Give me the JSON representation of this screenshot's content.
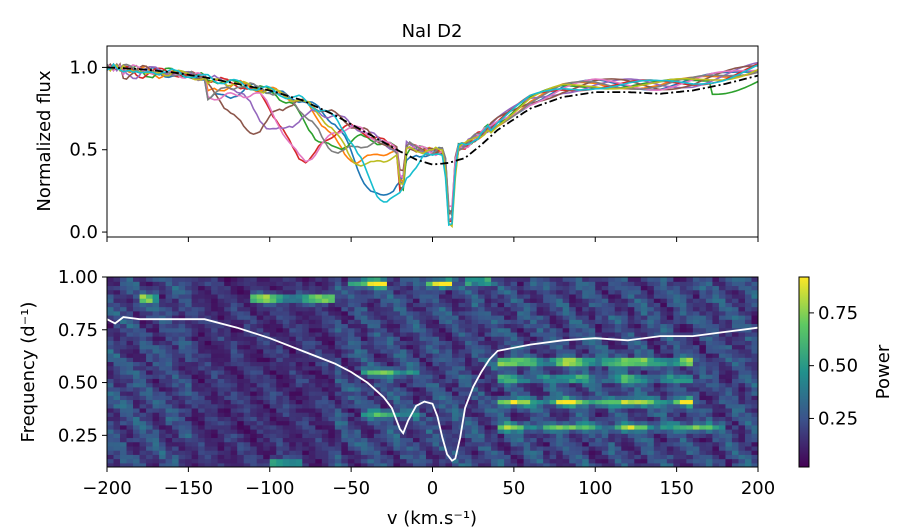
{
  "chart_data": [
    {
      "type": "line",
      "title": "NaI D2",
      "ylabel": "Normalized flux",
      "xlabel": "",
      "xlim": [
        -200,
        200
      ],
      "ylim": [
        -0.03,
        1.13
      ],
      "yticks": [
        0.0,
        0.5,
        1.0
      ],
      "ytick_labels": [
        "0.0",
        "0.5",
        "1.0"
      ],
      "xticks": [
        -200,
        -150,
        -100,
        -50,
        0,
        50,
        100,
        150,
        200
      ],
      "grid": false,
      "legend": "none",
      "series_colors": [
        "#1f77b4",
        "#ff7f0e",
        "#2ca02c",
        "#d62728",
        "#9467bd",
        "#8c564b",
        "#e377c2",
        "#7f7f7f",
        "#bcbd22",
        "#17becf"
      ],
      "template_color": "#000000",
      "template_style": "dash-dot",
      "template": {
        "x": [
          -200,
          -180,
          -160,
          -140,
          -120,
          -100,
          -80,
          -60,
          -40,
          -20,
          -10,
          0,
          10,
          20,
          30,
          40,
          60,
          80,
          100,
          120,
          140,
          160,
          180,
          200
        ],
        "y": [
          1.0,
          0.99,
          0.97,
          0.94,
          0.9,
          0.86,
          0.8,
          0.71,
          0.6,
          0.49,
          0.44,
          0.41,
          0.42,
          0.45,
          0.53,
          0.62,
          0.75,
          0.82,
          0.85,
          0.85,
          0.84,
          0.86,
          0.9,
          0.95
        ]
      }
    },
    {
      "type": "heatmap",
      "xlabel": "v (km.s⁻¹)",
      "ylabel": "Frequency (d⁻¹)",
      "xlim": [
        -200,
        200
      ],
      "ylim": [
        0.1,
        1.0
      ],
      "xticks": [
        -200,
        -150,
        -100,
        -50,
        0,
        50,
        100,
        150,
        200
      ],
      "xtick_labels": [
        "−200",
        "−150",
        "−100",
        "−50",
        "0",
        "50",
        "100",
        "150",
        "200"
      ],
      "yticks": [
        0.25,
        0.5,
        0.75,
        1.0
      ],
      "ytick_labels": [
        "0.25",
        "0.50",
        "0.75",
        "1.00"
      ],
      "colormap": "viridis",
      "colorbar_label": "Power",
      "colorbar_range": [
        0.02,
        0.92
      ],
      "colorbar_ticks": [
        0.25,
        0.5,
        0.75
      ],
      "colorbar_tick_labels": [
        "0.25",
        "0.50",
        "0.75"
      ],
      "overlay_profile_color": "#ffffff",
      "overlay_profile": {
        "x": [
          -200,
          -195,
          -190,
          -180,
          -160,
          -140,
          -120,
          -100,
          -80,
          -60,
          -50,
          -40,
          -30,
          -25,
          -20,
          -18,
          -15,
          -10,
          -5,
          0,
          3,
          6,
          9,
          12,
          14,
          17,
          20,
          25,
          30,
          35,
          40,
          60,
          80,
          100,
          120,
          140,
          160,
          180,
          190,
          200
        ],
        "y": [
          0.8,
          0.78,
          0.81,
          0.8,
          0.8,
          0.8,
          0.76,
          0.71,
          0.65,
          0.59,
          0.55,
          0.5,
          0.43,
          0.38,
          0.28,
          0.26,
          0.32,
          0.39,
          0.41,
          0.4,
          0.34,
          0.24,
          0.16,
          0.13,
          0.14,
          0.24,
          0.38,
          0.48,
          0.55,
          0.61,
          0.65,
          0.68,
          0.7,
          0.71,
          0.7,
          0.72,
          0.72,
          0.74,
          0.75,
          0.76
        ]
      },
      "bright_bands": [
        {
          "x": [
            -110,
            -60
          ],
          "freq": 0.9,
          "level": 0.8
        },
        {
          "x": [
            -50,
            -30
          ],
          "freq": 0.97,
          "level": 0.9
        },
        {
          "x": [
            -5,
            10
          ],
          "freq": 0.97,
          "level": 0.85
        },
        {
          "x": [
            20,
            35
          ],
          "freq": 0.98,
          "level": 0.85
        },
        {
          "x": [
            40,
            160
          ],
          "freq": 0.6,
          "level": 0.75
        },
        {
          "x": [
            40,
            160
          ],
          "freq": 0.41,
          "level": 0.7
        },
        {
          "x": [
            40,
            160
          ],
          "freq": 0.52,
          "level": 0.45
        },
        {
          "x": [
            40,
            180
          ],
          "freq": 0.29,
          "level": 0.55
        },
        {
          "x": [
            -180,
            -170
          ],
          "freq": 0.9,
          "level": 0.6
        },
        {
          "x": [
            -100,
            -80
          ],
          "freq": 0.12,
          "level": 0.7
        },
        {
          "x": [
            -45,
            -10
          ],
          "freq": 0.55,
          "level": 0.5
        },
        {
          "x": [
            -45,
            -10
          ],
          "freq": 0.35,
          "level": 0.45
        }
      ]
    }
  ]
}
